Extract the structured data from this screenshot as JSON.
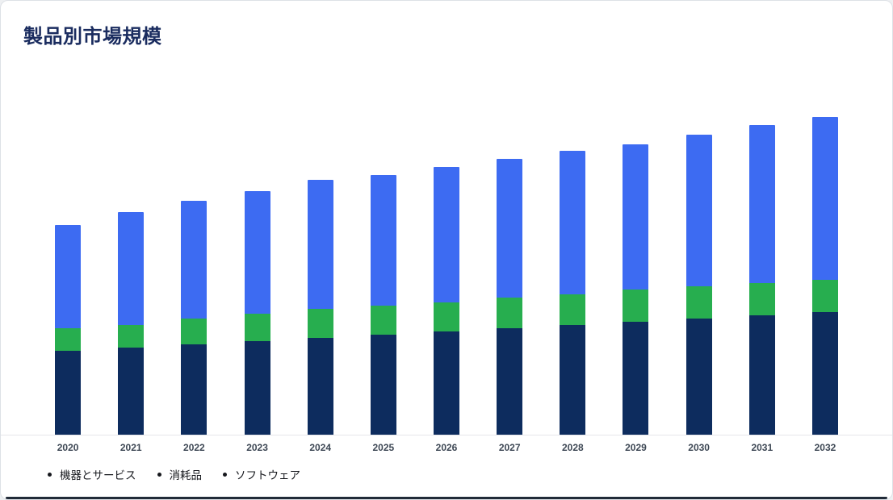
{
  "title": "製品別市場規模",
  "chart_data": {
    "type": "bar",
    "stacked": true,
    "title": "製品別市場規模",
    "categories": [
      "2020",
      "2021",
      "2022",
      "2023",
      "2024",
      "2025",
      "2026",
      "2027",
      "2028",
      "2029",
      "2030",
      "2031",
      "2032"
    ],
    "series": [
      {
        "name": "機器とサービス",
        "color": "#0d2c5e",
        "values": [
          26,
          27,
          28,
          29,
          30,
          31,
          32,
          33,
          34,
          35,
          36,
          37,
          38
        ]
      },
      {
        "name": "消耗品",
        "color": "#27ae4f",
        "values": [
          7,
          7,
          8,
          8.5,
          9,
          9,
          9,
          9.5,
          9.5,
          10,
          10,
          10,
          10
        ]
      },
      {
        "name": "ソフトウェア",
        "color": "#3d6bf2",
        "values": [
          32,
          35,
          36.5,
          38,
          40,
          40.5,
          42,
          43,
          44.5,
          45,
          47,
          49,
          50.5
        ]
      }
    ],
    "xlabel": "",
    "ylabel": "",
    "ylim": [
      0,
      110
    ],
    "grid": false,
    "y_axis_visible": false,
    "legend_position": "bottom"
  },
  "legend": {
    "items": [
      "機器とサービス",
      "消耗品",
      "ソフトウェア"
    ]
  },
  "colors": {
    "title": "#1a2c5f",
    "axis_label": "#3d4754",
    "baseline": "#e5e7eb",
    "card_background": "#ffffff",
    "card_border": "#dde1e6",
    "legend_bullet": "#16181d"
  }
}
